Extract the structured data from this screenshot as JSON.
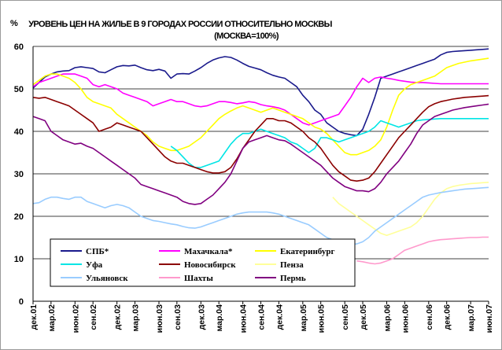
{
  "chart_data": {
    "type": "line",
    "title": "УРОВЕНЬ ЦЕН НА ЖИЛЬЕ В 9 ГОРОДАХ РОССИИ ОТНОСИТЕЛЬНО МОСКВЫ",
    "subtitle": "(МОСКВА=100%)",
    "ylabel": "%",
    "xlabel": "",
    "ylim": [
      0,
      60
    ],
    "yticks": [
      0,
      10,
      20,
      30,
      40,
      50,
      60
    ],
    "grid": "horizontal",
    "legend_position": "bottom-left",
    "x_count": 77,
    "xtick_labels": [
      "дек.01",
      "мар.02",
      "июн.02",
      "сен.02",
      "дек.02",
      "мар.03",
      "июн.03",
      "сен.03",
      "дек.03",
      "мар.04",
      "июн.04",
      "сен.04",
      "дек.04",
      "мар.05",
      "июн.05",
      "сен.05",
      "дек.05",
      "мар.06",
      "июн.06",
      "сен.06",
      "дек.06",
      "мар.07",
      "июн.07"
    ],
    "series": [
      {
        "name": "СПБ*",
        "color": "#1a1a8c",
        "start": 0,
        "values": [
          50.2,
          51.5,
          52.8,
          53.5,
          54.0,
          54.2,
          54.3,
          55.0,
          55.2,
          55.0,
          54.8,
          54.0,
          53.8,
          54.5,
          55.2,
          55.5,
          55.4,
          55.6,
          55.0,
          54.5,
          54.3,
          54.6,
          54.2,
          52.5,
          53.5,
          53.6,
          53.5,
          54.2,
          55.0,
          56.0,
          56.8,
          57.3,
          57.6,
          57.4,
          56.8,
          56.0,
          55.3,
          54.9,
          54.5,
          53.8,
          53.2,
          52.8,
          52.5,
          51.5,
          50.5,
          48.5,
          47.0,
          45.0,
          44.0,
          42.0,
          41.0,
          40.0,
          39.5,
          39.2,
          39.0,
          40.5,
          44.0,
          48.0,
          52.5,
          53.0,
          53.5,
          54.0,
          54.5,
          55.0,
          55.5,
          56.0,
          56.5,
          57.0,
          58.0,
          58.6,
          58.8,
          58.9,
          59.0,
          59.1,
          59.2,
          59.3,
          59.4
        ]
      },
      {
        "name": "Махачкала*",
        "color": "#ff00ff",
        "start": 0,
        "values": [
          50.5,
          51.5,
          52.0,
          52.5,
          53.0,
          53.5,
          53.5,
          53.5,
          53.0,
          52.5,
          51.0,
          50.5,
          51.0,
          50.5,
          50.0,
          49.0,
          48.5,
          48.0,
          47.5,
          47.0,
          46.0,
          46.5,
          47.0,
          47.5,
          47.0,
          47.0,
          46.5,
          46.0,
          45.8,
          46.0,
          46.5,
          47.0,
          47.0,
          46.8,
          46.5,
          46.7,
          47.0,
          46.8,
          46.3,
          46.0,
          45.8,
          45.5,
          45.0,
          44.0,
          43.0,
          42.0,
          41.5,
          42.0,
          42.5,
          43.0,
          43.5,
          44.0,
          46.0,
          48.0,
          50.5,
          52.5,
          51.5,
          52.5,
          52.8,
          52.5,
          52.3,
          52.0,
          51.8,
          51.6,
          51.5,
          51.5,
          51.4,
          51.3,
          51.2,
          51.2,
          51.2,
          51.2,
          51.2,
          51.2,
          51.2,
          51.2,
          51.2
        ]
      },
      {
        "name": "Екатеринбург",
        "color": "#ffff00",
        "start": 0,
        "values": [
          51.0,
          52.0,
          53.0,
          53.5,
          53.5,
          53.0,
          52.5,
          51.5,
          50.0,
          48.0,
          47.0,
          46.5,
          46.0,
          45.5,
          44.0,
          43.0,
          42.0,
          41.0,
          40.0,
          39.0,
          37.5,
          36.5,
          36.0,
          35.5,
          35.5,
          36.0,
          36.5,
          37.5,
          38.5,
          40.0,
          41.5,
          43.0,
          44.0,
          44.8,
          45.5,
          46.0,
          45.5,
          45.0,
          44.5,
          45.0,
          45.5,
          45.0,
          44.5,
          44.0,
          43.5,
          43.0,
          42.0,
          41.0,
          40.5,
          39.5,
          38.0,
          36.5,
          35.0,
          34.5,
          34.5,
          35.0,
          35.5,
          36.5,
          38.0,
          41.0,
          45.0,
          48.5,
          50.0,
          51.0,
          51.5,
          52.0,
          52.5,
          53.0,
          54.0,
          55.0,
          55.5,
          56.0,
          56.3,
          56.6,
          56.8,
          57.0,
          57.2
        ]
      },
      {
        "name": "Уфа",
        "color": "#00e5e5",
        "start": 23,
        "values": [
          36.5,
          35.5,
          34.0,
          32.5,
          31.5,
          31.5,
          32.0,
          32.5,
          33.0,
          35.0,
          37.0,
          38.5,
          39.5,
          39.5,
          40.0,
          40.5,
          40.0,
          39.5,
          39.0,
          38.5,
          37.5,
          37.0,
          36.0,
          35.0,
          36.0,
          38.5,
          38.5,
          38.0,
          37.5,
          38.0,
          38.5,
          39.0,
          39.5,
          40.0,
          41.0,
          42.5,
          42.0,
          41.5,
          41.0,
          41.5,
          42.0,
          42.5,
          42.7,
          42.8,
          42.9,
          43.0,
          43.0,
          43.0,
          43.0,
          43.0,
          43.0,
          43.0,
          43.0,
          43.0
        ]
      },
      {
        "name": "Новосибирск",
        "color": "#8b0000",
        "start": 0,
        "values": [
          48.0,
          47.8,
          48.0,
          47.5,
          47.0,
          46.5,
          46.0,
          45.0,
          44.0,
          43.0,
          42.0,
          40.0,
          40.5,
          41.0,
          42.0,
          41.5,
          41.0,
          40.5,
          40.0,
          38.5,
          37.0,
          35.5,
          34.0,
          33.0,
          32.5,
          32.5,
          32.0,
          31.5,
          31.0,
          30.5,
          30.2,
          30.2,
          30.5,
          31.5,
          33.5,
          36.0,
          38.0,
          40.0,
          41.5,
          43.0,
          43.0,
          42.5,
          42.5,
          42.0,
          41.0,
          40.0,
          38.5,
          37.5,
          36.0,
          34.0,
          32.0,
          30.5,
          29.5,
          28.5,
          28.3,
          28.5,
          29.0,
          30.5,
          32.5,
          34.5,
          36.5,
          38.5,
          40.0,
          41.5,
          43.0,
          44.5,
          45.8,
          46.5,
          47.0,
          47.3,
          47.6,
          47.8,
          48.0,
          48.1,
          48.2,
          48.3,
          48.4
        ]
      },
      {
        "name": "Пенза",
        "color": "#ffff99",
        "start": 50,
        "values": [
          24.5,
          23.0,
          22.0,
          21.0,
          20.0,
          19.0,
          18.0,
          17.0,
          16.0,
          15.5,
          16.0,
          16.5,
          17.0,
          17.5,
          18.5,
          20.0,
          22.0,
          24.0,
          25.5,
          26.5,
          27.0,
          27.3,
          27.5,
          27.7,
          27.8,
          27.9,
          28.0
        ]
      },
      {
        "name": "Ульяновск",
        "color": "#99ccff",
        "start": 0,
        "values": [
          23.0,
          23.2,
          24.0,
          24.5,
          24.5,
          24.2,
          24.0,
          24.5,
          24.5,
          23.5,
          23.0,
          22.5,
          22.0,
          22.5,
          22.8,
          22.5,
          22.0,
          21.0,
          20.0,
          19.5,
          19.0,
          18.8,
          18.5,
          18.2,
          18.0,
          17.6,
          17.3,
          17.2,
          17.5,
          18.0,
          18.5,
          19.0,
          19.5,
          20.0,
          20.5,
          20.8,
          21.0,
          21.0,
          21.0,
          21.0,
          20.8,
          20.5,
          20.0,
          19.5,
          19.0,
          18.5,
          18.0,
          17.0,
          16.0,
          15.0,
          14.5,
          14.0,
          13.5,
          13.3,
          13.5,
          14.0,
          15.0,
          16.5,
          17.5,
          18.5,
          19.5,
          20.5,
          21.5,
          22.5,
          23.5,
          24.5,
          25.0,
          25.3,
          25.6,
          25.8,
          26.0,
          26.2,
          26.4,
          26.5,
          26.6,
          26.7,
          26.8
        ]
      },
      {
        "name": "Шахты",
        "color": "#ff99cc",
        "start": 54,
        "values": [
          9.5,
          9.3,
          9.0,
          8.8,
          9.0,
          9.5,
          10.0,
          11.0,
          12.0,
          12.5,
          13.0,
          13.5,
          14.0,
          14.3,
          14.5,
          14.6,
          14.7,
          14.8,
          14.9,
          15.0,
          15.0,
          15.1,
          15.1
        ]
      },
      {
        "name": "Пермь",
        "color": "#800080",
        "start": 0,
        "values": [
          43.5,
          43.0,
          42.5,
          40.0,
          39.0,
          38.0,
          37.5,
          37.0,
          37.2,
          36.5,
          36.0,
          35.0,
          34.0,
          33.0,
          32.0,
          31.0,
          30.0,
          29.0,
          27.5,
          27.0,
          26.5,
          26.0,
          25.5,
          25.0,
          24.5,
          23.5,
          23.0,
          22.8,
          23.0,
          24.0,
          25.0,
          26.5,
          28.0,
          30.0,
          33.0,
          36.0,
          37.5,
          38.0,
          38.5,
          39.0,
          38.5,
          38.0,
          37.8,
          37.0,
          36.0,
          35.0,
          34.0,
          33.0,
          32.0,
          30.5,
          29.0,
          28.0,
          27.0,
          26.5,
          26.0,
          26.0,
          25.8,
          26.5,
          28.0,
          30.0,
          31.5,
          33.0,
          35.0,
          37.0,
          39.5,
          41.5,
          42.5,
          43.5,
          44.0,
          44.5,
          45.0,
          45.3,
          45.6,
          45.8,
          46.0,
          46.2,
          46.4
        ]
      }
    ]
  }
}
